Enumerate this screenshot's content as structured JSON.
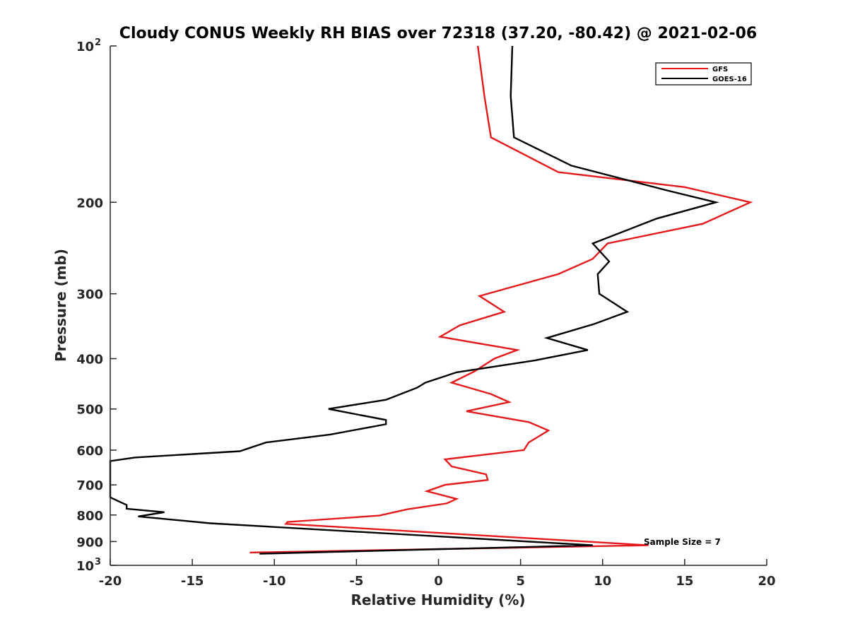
{
  "chart_data": {
    "type": "line",
    "title": "Cloudy CONUS Weekly RH BIAS over 72318 (37.20, -80.42) @ 2021-02-06",
    "xlabel": "Relative Humidity (%)",
    "ylabel": "Pressure (mb)",
    "xlim": [
      -20,
      20
    ],
    "ylim": [
      100,
      1000
    ],
    "yscale": "log",
    "y_reversed": true,
    "xticks": [
      {
        "value": -20,
        "label": "-20"
      },
      {
        "value": -15,
        "label": "-15"
      },
      {
        "value": -10,
        "label": "-10"
      },
      {
        "value": -5,
        "label": "-5"
      },
      {
        "value": 0,
        "label": "0"
      },
      {
        "value": 5,
        "label": "5"
      },
      {
        "value": 10,
        "label": "10"
      },
      {
        "value": 15,
        "label": "15"
      },
      {
        "value": 20,
        "label": "20"
      }
    ],
    "yticks": [
      {
        "value": 100,
        "label": "10",
        "exp": "2"
      },
      {
        "value": 200,
        "label": "200",
        "exp": ""
      },
      {
        "value": 300,
        "label": "300",
        "exp": ""
      },
      {
        "value": 400,
        "label": "400",
        "exp": ""
      },
      {
        "value": 500,
        "label": "500",
        "exp": ""
      },
      {
        "value": 600,
        "label": "600",
        "exp": ""
      },
      {
        "value": 700,
        "label": "700",
        "exp": ""
      },
      {
        "value": 800,
        "label": "800",
        "exp": ""
      },
      {
        "value": 900,
        "label": "900",
        "exp": ""
      },
      {
        "value": 1000,
        "label": "10",
        "exp": "3"
      }
    ],
    "legend_position": "top-right",
    "annotation": "Sample Size = 7",
    "series": [
      {
        "name": "GFS",
        "color": "#e41a1c",
        "points": [
          [
            2.4,
            100
          ],
          [
            2.8,
            125
          ],
          [
            3.2,
            150
          ],
          [
            7.3,
            175
          ],
          [
            15.0,
            187
          ],
          [
            19.0,
            200
          ],
          [
            16.1,
            220
          ],
          [
            10.3,
            240
          ],
          [
            9.4,
            257
          ],
          [
            7.3,
            275
          ],
          [
            2.5,
            303
          ],
          [
            4.0,
            325
          ],
          [
            1.3,
            345
          ],
          [
            0.1,
            363
          ],
          [
            4.8,
            385
          ],
          [
            3.4,
            400
          ],
          [
            2.2,
            423
          ],
          [
            0.8,
            445
          ],
          [
            3.2,
            468
          ],
          [
            4.3,
            485
          ],
          [
            1.7,
            505
          ],
          [
            5.5,
            530
          ],
          [
            6.7,
            550
          ],
          [
            5.5,
            580
          ],
          [
            5.2,
            600
          ],
          [
            0.4,
            625
          ],
          [
            0.8,
            645
          ],
          [
            2.9,
            668
          ],
          [
            3.0,
            685
          ],
          [
            0.4,
            700
          ],
          [
            -0.7,
            720
          ],
          [
            1.1,
            745
          ],
          [
            0.5,
            760
          ],
          [
            -1.9,
            780
          ],
          [
            -3.6,
            802
          ],
          [
            -9.2,
            825
          ],
          [
            -9.3,
            832
          ],
          [
            12.8,
            915
          ],
          [
            -11.5,
            945
          ]
        ]
      },
      {
        "name": "GOES-16",
        "color": "#000000",
        "points": [
          [
            4.5,
            100
          ],
          [
            4.4,
            125
          ],
          [
            4.6,
            150
          ],
          [
            8.1,
            170
          ],
          [
            14.0,
            190
          ],
          [
            16.9,
            200
          ],
          [
            13.3,
            215
          ],
          [
            9.4,
            240
          ],
          [
            10.4,
            260
          ],
          [
            9.7,
            275
          ],
          [
            9.8,
            300
          ],
          [
            11.5,
            325
          ],
          [
            9.5,
            343
          ],
          [
            6.6,
            365
          ],
          [
            9.1,
            385
          ],
          [
            5.9,
            403
          ],
          [
            1.1,
            425
          ],
          [
            -0.8,
            445
          ],
          [
            -1.3,
            455
          ],
          [
            -3.2,
            480
          ],
          [
            -6.7,
            500
          ],
          [
            -3.2,
            525
          ],
          [
            -3.2,
            535
          ],
          [
            -6.6,
            560
          ],
          [
            -10.5,
            580
          ],
          [
            -12.1,
            603
          ],
          [
            -18.5,
            620
          ],
          [
            -20.0,
            630
          ],
          [
            -20.0,
            740
          ],
          [
            -19.4,
            755
          ],
          [
            -19.0,
            765
          ],
          [
            -19.0,
            778
          ],
          [
            -16.7,
            790
          ],
          [
            -18.3,
            805
          ],
          [
            -13.9,
            830
          ],
          [
            9.4,
            915
          ],
          [
            -10.9,
            950
          ]
        ]
      }
    ]
  }
}
